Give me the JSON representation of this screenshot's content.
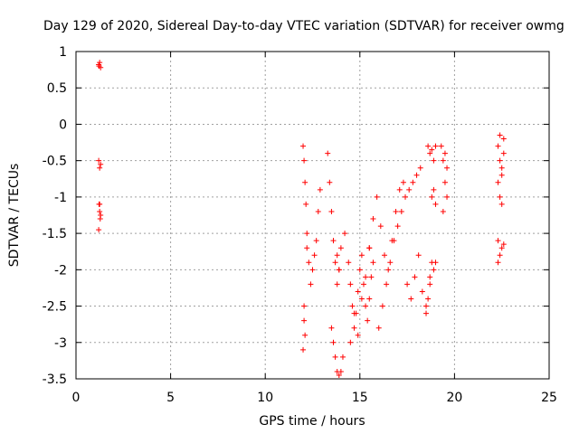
{
  "chart_data": {
    "type": "scatter",
    "title": "Day 129 of 2020, Sidereal Day-to-day VTEC variation (SDTVAR) for receiver owmg",
    "xlabel": "GPS time / hours",
    "ylabel": "SDTVAR / TECUs",
    "xlim": [
      0,
      25
    ],
    "ylim": [
      -3.5,
      1
    ],
    "xticks": [
      0,
      5,
      10,
      15,
      20,
      25
    ],
    "yticks": [
      -3.5,
      -3,
      -2.5,
      -2,
      -1.5,
      -1,
      -0.5,
      0,
      0.5,
      1
    ],
    "xtick_labels": [
      "0",
      "5",
      "10",
      "15",
      "20",
      "25"
    ],
    "ytick_labels": [
      "-3.5",
      "-3",
      "-2.5",
      "-2",
      "-1.5",
      "-1",
      "-0.5",
      "0",
      "0.5",
      "1"
    ],
    "grid": true,
    "marker": "+",
    "color": "#ff0000",
    "series": [
      {
        "name": "owmg",
        "x": [
          1.2,
          1.22,
          1.25,
          1.3,
          1.2,
          1.25,
          1.3,
          1.22,
          1.25,
          1.28,
          1.2,
          1.25,
          1.3,
          12.0,
          12.05,
          12.1,
          12.15,
          12.2,
          12.3,
          12.4,
          12.5,
          12.6,
          12.7,
          12.8,
          12.9,
          12.05,
          12.1,
          12.2,
          12.0,
          12.05,
          13.3,
          13.4,
          13.5,
          13.6,
          13.7,
          13.8,
          13.9,
          14.0,
          13.5,
          13.6,
          13.7,
          13.8,
          13.9,
          14.0,
          14.1,
          14.2,
          13.8,
          13.9,
          14.4,
          14.5,
          14.6,
          14.7,
          14.8,
          14.9,
          15.0,
          15.1,
          15.2,
          15.3,
          15.4,
          15.5,
          15.6,
          15.7,
          14.5,
          14.7,
          14.9,
          15.1,
          15.3,
          15.5,
          15.5,
          15.7,
          15.9,
          16.1,
          16.3,
          16.5,
          16.7,
          16.9,
          17.1,
          17.3,
          16.0,
          16.2,
          16.4,
          16.6,
          16.8,
          17.0,
          17.2,
          17.4,
          17.6,
          17.8,
          18.0,
          18.2,
          17.5,
          17.7,
          17.9,
          18.1,
          18.3,
          18.5,
          18.7,
          18.9,
          19.0,
          18.6,
          18.7,
          18.8,
          18.9,
          19.0,
          18.8,
          18.9,
          19.0,
          19.3,
          19.4,
          19.5,
          19.6,
          19.4,
          19.5,
          19.6,
          18.5,
          18.6,
          18.7,
          18.8,
          22.3,
          22.4,
          22.5,
          22.6,
          22.3,
          22.4,
          22.5,
          22.6,
          22.3,
          22.4,
          22.5,
          22.6,
          22.3,
          22.4,
          22.5
        ],
        "y": [
          0.82,
          0.8,
          0.85,
          0.78,
          -0.5,
          -0.6,
          -0.55,
          -1.1,
          -1.2,
          -1.3,
          -1.45,
          -1.1,
          -1.25,
          -0.3,
          -0.5,
          -0.8,
          -1.1,
          -1.5,
          -1.9,
          -2.2,
          -2.0,
          -1.8,
          -1.6,
          -1.2,
          -0.9,
          -2.5,
          -2.9,
          -1.7,
          -3.1,
          -2.7,
          -0.4,
          -0.8,
          -1.2,
          -1.6,
          -1.9,
          -2.2,
          -2.0,
          -1.7,
          -2.8,
          -3.0,
          -3.2,
          -3.4,
          -3.45,
          -3.4,
          -3.2,
          -1.5,
          -1.8,
          -2.0,
          -1.9,
          -2.2,
          -2.5,
          -2.8,
          -2.6,
          -2.3,
          -2.0,
          -1.8,
          -2.2,
          -2.5,
          -2.7,
          -2.4,
          -2.1,
          -1.9,
          -3.0,
          -2.6,
          -2.9,
          -2.4,
          -2.1,
          -1.7,
          -1.7,
          -1.3,
          -1.0,
          -1.4,
          -1.8,
          -2.0,
          -1.6,
          -1.2,
          -0.9,
          -0.8,
          -2.8,
          -2.5,
          -2.2,
          -1.9,
          -1.6,
          -1.4,
          -1.2,
          -1.0,
          -0.9,
          -0.8,
          -0.7,
          -0.6,
          -2.2,
          -2.4,
          -2.1,
          -1.8,
          -2.3,
          -2.5,
          -2.2,
          -2.0,
          -1.9,
          -0.3,
          -0.4,
          -0.35,
          -0.5,
          -0.3,
          -1.0,
          -0.9,
          -1.1,
          -0.3,
          -0.5,
          -0.8,
          -1.0,
          -1.2,
          -0.4,
          -0.6,
          -2.6,
          -2.4,
          -2.1,
          -1.9,
          -0.3,
          -0.5,
          -0.7,
          -0.2,
          -0.8,
          -1.0,
          -0.6,
          -0.4,
          -1.6,
          -1.8,
          -1.7,
          -1.65,
          -1.9,
          -0.15,
          -1.1
        ]
      }
    ]
  }
}
